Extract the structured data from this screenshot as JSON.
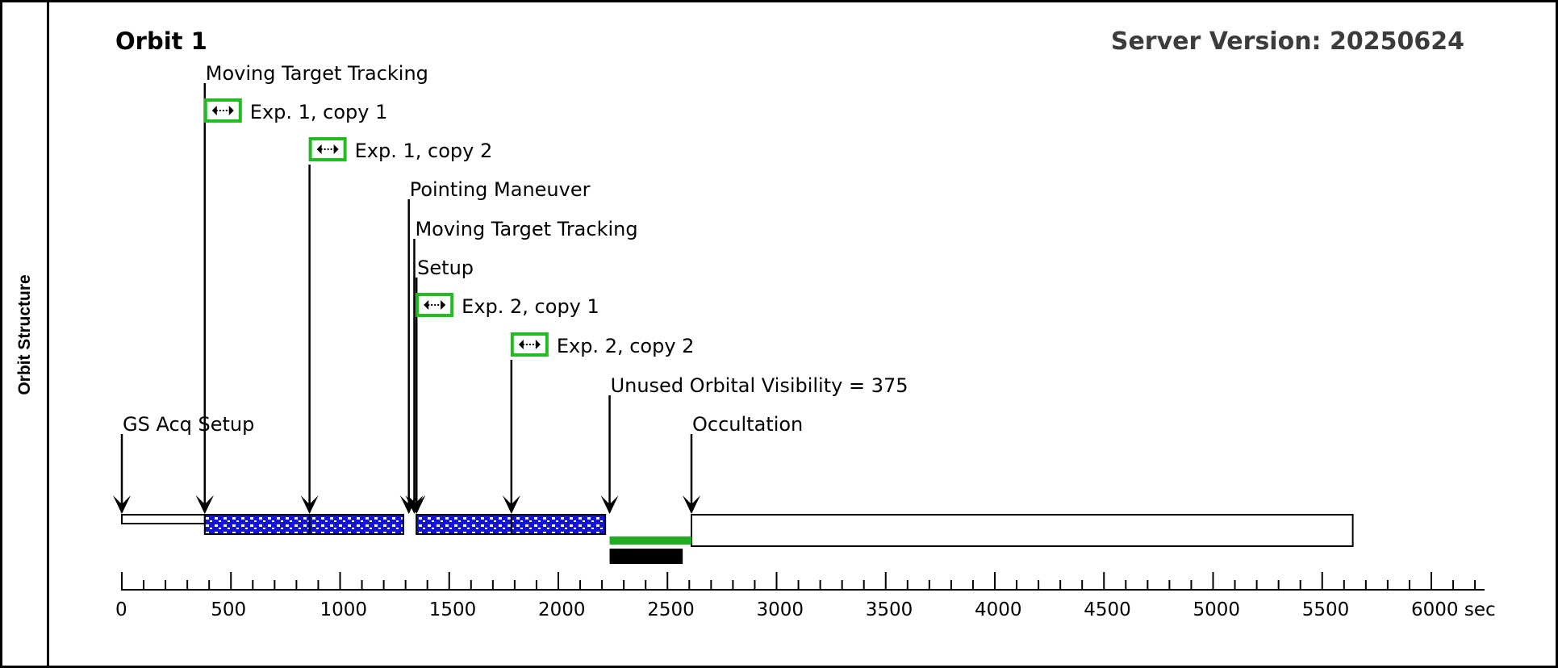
{
  "side_title": "Orbit Structure",
  "orbit_title": "Orbit 1",
  "server_version": "Server Version: 20250624",
  "axis": {
    "min": 0,
    "max": 6250,
    "major_step": 500,
    "minor_step": 100,
    "ticks": [
      "0",
      "500",
      "1000",
      "1500",
      "2000",
      "2500",
      "3000",
      "3500",
      "4000",
      "4500",
      "5000",
      "5500",
      "6000 sec"
    ]
  },
  "events": [
    {
      "label": "GS Acq Setup",
      "time": 0,
      "icon": null
    },
    {
      "label": "Moving Target Tracking",
      "time": 380,
      "icon": null
    },
    {
      "label": "Exp. 1, copy 1",
      "time": 380,
      "icon": "exposure-icon"
    },
    {
      "label": "Exp. 1, copy 2",
      "time": 860,
      "icon": "exposure-icon"
    },
    {
      "label": "Pointing Maneuver",
      "time": 1315,
      "icon": null
    },
    {
      "label": "Moving Target Tracking",
      "time": 1340,
      "icon": null
    },
    {
      "label": "Setup",
      "time": 1350,
      "icon": null
    },
    {
      "label": "Exp. 2, copy 1",
      "time": 1350,
      "icon": "exposure-icon"
    },
    {
      "label": "Exp. 2, copy 2",
      "time": 1785,
      "icon": "exposure-icon"
    },
    {
      "label": "Unused Orbital Visibility = 375",
      "time": 2235,
      "icon": null
    },
    {
      "label": "Occultation",
      "time": 2610,
      "icon": null
    }
  ],
  "segments": [
    {
      "name": "gs-acq-setup",
      "start": 0,
      "end": 380,
      "style": "plain-thin"
    },
    {
      "name": "exposure-1-copy-1",
      "start": 380,
      "end": 860,
      "style": "dotted-blue"
    },
    {
      "name": "exposure-1-copy-2",
      "start": 860,
      "end": 1290,
      "style": "dotted-blue"
    },
    {
      "name": "exposure-2-copy-1",
      "start": 1350,
      "end": 1785,
      "style": "dotted-blue"
    },
    {
      "name": "exposure-2-copy-2",
      "start": 1785,
      "end": 2215,
      "style": "dotted-blue"
    },
    {
      "name": "occultation",
      "start": 2610,
      "end": 5640,
      "style": "plain-tall"
    }
  ],
  "visibility_bars": [
    {
      "name": "unused-visibility-green",
      "start": 2235,
      "end": 2610,
      "color": "#22aa22"
    },
    {
      "name": "unused-visibility-black",
      "start": 2235,
      "end": 2570,
      "color": "#000000"
    }
  ],
  "colors": {
    "exposure_icon_border": "#22bb22",
    "exposure_fill": "#1414d8",
    "visibility_green": "#22aa22"
  }
}
